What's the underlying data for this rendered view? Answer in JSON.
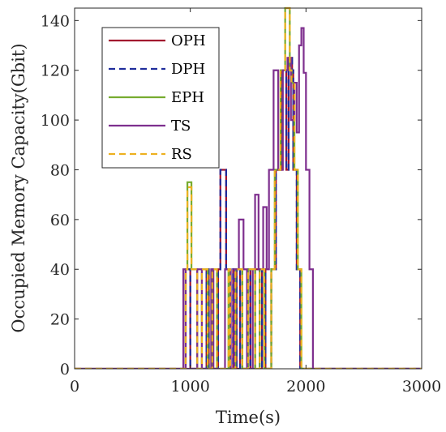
{
  "chart_data": {
    "type": "line",
    "title": "",
    "xlabel": "Time(s)",
    "ylabel": "Occupied Memory Capacity(Gbit)",
    "xlim": [
      0,
      3000
    ],
    "ylim": [
      0,
      145
    ],
    "xticks": [
      0,
      1000,
      2000,
      3000
    ],
    "yticks": [
      0,
      20,
      40,
      60,
      80,
      100,
      120,
      140
    ],
    "grid": false,
    "legend_position": "top-left",
    "series": [
      {
        "name": "OPH",
        "color": "#a2142f",
        "dash": "solid",
        "x": [
          0,
          960,
          960,
          1000,
          1000,
          1140,
          1140,
          1160,
          1160,
          1240,
          1240,
          1260,
          1260,
          1310,
          1310,
          1340,
          1340,
          1370,
          1370,
          1400,
          1400,
          1430,
          1430,
          1450,
          1450,
          1500,
          1500,
          1520,
          1520,
          1560,
          1560,
          1600,
          1600,
          1620,
          1620,
          1650,
          1650,
          1700,
          1700,
          1740,
          1740,
          1790,
          1790,
          1830,
          1830,
          1850,
          1850,
          1880,
          1880,
          1890,
          1890,
          1920,
          1920,
          1950,
          1950,
          2000,
          2000,
          3000
        ],
        "y": [
          0,
          0,
          40,
          40,
          0,
          0,
          40,
          40,
          0,
          0,
          40,
          40,
          80,
          80,
          40,
          40,
          0,
          0,
          40,
          40,
          0,
          0,
          40,
          40,
          0,
          0,
          40,
          40,
          0,
          0,
          40,
          40,
          0,
          0,
          40,
          40,
          0,
          0,
          40,
          40,
          80,
          80,
          120,
          120,
          80,
          80,
          125,
          125,
          120,
          120,
          80,
          80,
          40,
          40,
          0,
          0,
          0,
          0
        ]
      },
      {
        "name": "DPH",
        "color": "#1f2d9c",
        "dash": "dashed",
        "x": [
          0,
          960,
          960,
          1000,
          1000,
          1140,
          1140,
          1160,
          1160,
          1240,
          1240,
          1260,
          1260,
          1310,
          1310,
          1340,
          1340,
          1370,
          1370,
          1400,
          1400,
          1430,
          1430,
          1450,
          1450,
          1500,
          1500,
          1520,
          1520,
          1560,
          1560,
          1600,
          1600,
          1620,
          1620,
          1650,
          1650,
          1700,
          1700,
          1740,
          1740,
          1790,
          1790,
          1830,
          1830,
          1850,
          1850,
          1880,
          1880,
          1890,
          1890,
          1920,
          1920,
          1950,
          1950,
          2000,
          2000,
          3000
        ],
        "y": [
          0,
          0,
          40,
          40,
          0,
          0,
          40,
          40,
          0,
          0,
          40,
          40,
          80,
          80,
          40,
          40,
          0,
          0,
          40,
          40,
          0,
          0,
          40,
          40,
          0,
          0,
          40,
          40,
          0,
          0,
          40,
          40,
          0,
          0,
          40,
          40,
          0,
          0,
          40,
          40,
          80,
          80,
          120,
          120,
          80,
          80,
          125,
          125,
          120,
          120,
          80,
          80,
          40,
          40,
          0,
          0,
          0,
          0
        ]
      },
      {
        "name": "EPH",
        "color": "#77ac30",
        "dash": "solid",
        "x": [
          0,
          960,
          960,
          975,
          975,
          1010,
          1010,
          1060,
          1060,
          1100,
          1100,
          1150,
          1150,
          1190,
          1190,
          1230,
          1230,
          1330,
          1330,
          1345,
          1345,
          1390,
          1390,
          1450,
          1450,
          1500,
          1500,
          1560,
          1560,
          1600,
          1600,
          1640,
          1640,
          1700,
          1700,
          1730,
          1730,
          1780,
          1780,
          1820,
          1820,
          1860,
          1860,
          1875,
          1875,
          1900,
          1900,
          1930,
          1930,
          1960,
          1960,
          2010,
          2010,
          3000
        ],
        "y": [
          0,
          0,
          40,
          40,
          75,
          75,
          40,
          40,
          0,
          0,
          40,
          40,
          0,
          0,
          40,
          40,
          0,
          0,
          40,
          40,
          0,
          0,
          40,
          40,
          0,
          0,
          40,
          40,
          0,
          0,
          40,
          40,
          0,
          0,
          40,
          40,
          80,
          80,
          120,
          120,
          145,
          145,
          120,
          120,
          115,
          115,
          80,
          80,
          40,
          40,
          0,
          0,
          0,
          0
        ]
      },
      {
        "name": "TS",
        "color": "#7e2f8e",
        "dash": "solid",
        "x": [
          0,
          940,
          940,
          960,
          960,
          1060,
          1060,
          1100,
          1100,
          1180,
          1180,
          1200,
          1200,
          1300,
          1300,
          1350,
          1350,
          1380,
          1380,
          1420,
          1420,
          1460,
          1460,
          1490,
          1490,
          1540,
          1540,
          1560,
          1560,
          1590,
          1590,
          1630,
          1630,
          1660,
          1660,
          1680,
          1680,
          1720,
          1720,
          1760,
          1760,
          1800,
          1800,
          1840,
          1840,
          1870,
          1870,
          1900,
          1900,
          1920,
          1920,
          1940,
          1940,
          1960,
          1960,
          1980,
          1980,
          2000,
          2000,
          2030,
          2030,
          2060,
          2060,
          2100,
          2100,
          3000
        ],
        "y": [
          0,
          0,
          40,
          40,
          0,
          0,
          40,
          40,
          0,
          0,
          40,
          40,
          0,
          0,
          40,
          40,
          0,
          0,
          40,
          40,
          60,
          60,
          40,
          40,
          0,
          0,
          40,
          40,
          70,
          70,
          40,
          40,
          65,
          65,
          40,
          40,
          80,
          80,
          120,
          120,
          80,
          80,
          120,
          120,
          125,
          125,
          100,
          100,
          115,
          115,
          95,
          95,
          130,
          130,
          137,
          137,
          119,
          119,
          80,
          80,
          40,
          40,
          0,
          0,
          0,
          0
        ]
      },
      {
        "name": "RS",
        "color": "#edb120",
        "dash": "dashed",
        "x": [
          0,
          960,
          960,
          975,
          975,
          1010,
          1010,
          1060,
          1060,
          1100,
          1100,
          1150,
          1150,
          1190,
          1190,
          1230,
          1230,
          1330,
          1330,
          1345,
          1345,
          1390,
          1390,
          1450,
          1450,
          1500,
          1500,
          1560,
          1560,
          1600,
          1600,
          1640,
          1640,
          1700,
          1700,
          1730,
          1730,
          1780,
          1780,
          1820,
          1820,
          1860,
          1860,
          1875,
          1875,
          1900,
          1900,
          1930,
          1930,
          1960,
          1960,
          2010,
          2010,
          3000
        ],
        "y": [
          0,
          0,
          40,
          40,
          73,
          73,
          40,
          40,
          0,
          0,
          40,
          40,
          0,
          0,
          40,
          40,
          0,
          0,
          40,
          40,
          0,
          0,
          40,
          40,
          0,
          0,
          40,
          40,
          0,
          0,
          40,
          40,
          0,
          0,
          40,
          40,
          80,
          80,
          120,
          120,
          145,
          145,
          120,
          120,
          115,
          115,
          80,
          80,
          40,
          40,
          0,
          0,
          0,
          0
        ]
      }
    ]
  }
}
